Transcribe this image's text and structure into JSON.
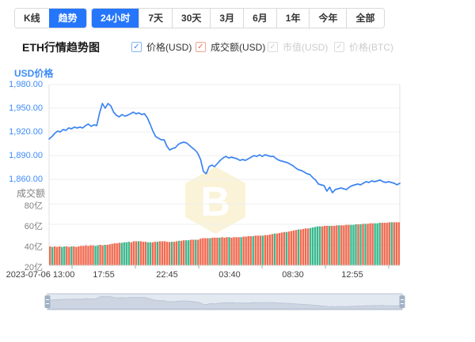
{
  "toolbar": {
    "chart_type_tabs": [
      {
        "label": "K线",
        "active": false
      },
      {
        "label": "趋势",
        "active": true
      }
    ],
    "range_tabs": [
      {
        "label": "24小时",
        "active": true
      },
      {
        "label": "7天",
        "active": false
      },
      {
        "label": "30天",
        "active": false
      },
      {
        "label": "3月",
        "active": false
      },
      {
        "label": "6月",
        "active": false
      },
      {
        "label": "1年",
        "active": false
      },
      {
        "label": "今年",
        "active": false
      },
      {
        "label": "全部",
        "active": false
      }
    ]
  },
  "header": {
    "title": "ETH行情趋势图",
    "legend": [
      {
        "label": "价格(USD)",
        "checked": true,
        "enabled": true,
        "color": "#3d87f5"
      },
      {
        "label": "成交额(USD)",
        "checked": true,
        "enabled": true,
        "color": "#ef6850"
      },
      {
        "label": "市值(USD)",
        "checked": true,
        "enabled": false,
        "color": "#cfcfcf"
      },
      {
        "label": "价格(BTC)",
        "checked": true,
        "enabled": false,
        "color": "#cfcfcf"
      }
    ]
  },
  "icons": {
    "check": "✓"
  },
  "colors": {
    "accent_blue": "#2576fb",
    "price_line": "#3c84f3",
    "price_tick_text": "#3d8bf8",
    "volume_red": "#f06a50",
    "volume_green": "#3bb88e",
    "grid": "#efefef",
    "axis_line": "#e2e2e2",
    "baseline": "#d6d6d6",
    "watermark": "#faf3d8",
    "nav_fill": "#e3e9f1",
    "nav_area": "#ccd5e1",
    "nav_border": "#b7c2d2",
    "nav_handle": "#a2b2c6"
  },
  "chart_data": {
    "type": "line+bar",
    "title": "ETH行情趋势图",
    "x_axis": {
      "ticks": [
        "2023-07-06 13:00",
        "17:55",
        "22:45",
        "03:40",
        "08:30",
        "12:55"
      ]
    },
    "price": {
      "series_name": "价格(USD)",
      "axis_label": "USD价格",
      "ticks": [
        "1,980.00",
        "1,950.00",
        "1,920.00",
        "1,890.00",
        "1,860.00"
      ],
      "tick_values": [
        1980,
        1950,
        1920,
        1890,
        1860
      ],
      "ymin": 1860,
      "ymax": 1980,
      "values": [
        1911,
        1914,
        1918,
        1921,
        1920,
        1923,
        1922,
        1925,
        1924,
        1926,
        1925,
        1926,
        1925,
        1928,
        1930,
        1927,
        1929,
        1928,
        1944,
        1956,
        1950,
        1956,
        1953,
        1945,
        1941,
        1939,
        1942,
        1940,
        1941,
        1943,
        1945,
        1943,
        1944,
        1942,
        1943,
        1938,
        1930,
        1921,
        1914,
        1912,
        1910,
        1910,
        1902,
        1897,
        1899,
        1900,
        1904,
        1906,
        1907,
        1906,
        1903,
        1900,
        1897,
        1893,
        1885,
        1870,
        1867,
        1876,
        1878,
        1876,
        1880,
        1884,
        1887,
        1889,
        1887,
        1888,
        1887,
        1886,
        1884,
        1885,
        1884,
        1886,
        1888,
        1890,
        1889,
        1891,
        1889,
        1891,
        1890,
        1889,
        1889,
        1886,
        1884,
        1883,
        1882,
        1881,
        1879,
        1877,
        1874,
        1872,
        1871,
        1869,
        1867,
        1866,
        1862,
        1859,
        1854,
        1853,
        1852,
        1845,
        1850,
        1843,
        1847,
        1848,
        1849,
        1848,
        1847,
        1850,
        1852,
        1853,
        1854,
        1853,
        1855,
        1857,
        1856,
        1858,
        1857,
        1858,
        1859,
        1857,
        1856,
        1857,
        1856,
        1855,
        1853,
        1855
      ]
    },
    "volume": {
      "series_name": "成交额(USD)",
      "axis_label": "成交额",
      "unit": "亿",
      "ticks": [
        "80亿",
        "60亿",
        "40亿",
        "20亿"
      ],
      "tick_values": [
        80,
        60,
        40,
        20
      ],
      "ymin": 20,
      "ymax": 80,
      "values": [
        38.5,
        38,
        38.5,
        38,
        38.5,
        38,
        38.5,
        38.5,
        38,
        38.5,
        38.5,
        38,
        38.5,
        39,
        39,
        39.5,
        39,
        39.5,
        39.5,
        39,
        39.5,
        40,
        39.5,
        40,
        40,
        40.5,
        41,
        41.5,
        41.5,
        42,
        42,
        42.5,
        42.5,
        43,
        42.5,
        43.5,
        43.5,
        43.5,
        43.5,
        43,
        43,
        42.5,
        42.5,
        42.5,
        43,
        43,
        43.5,
        43.5,
        43.5,
        43,
        42.8,
        43,
        43,
        43.5,
        44,
        44,
        44.5,
        44.5,
        44.5,
        45,
        45,
        45,
        45,
        46,
        46.5,
        46.5,
        46.5,
        46.5,
        47,
        47,
        47,
        47,
        47.5,
        47,
        47.5,
        47.5,
        47,
        47.5,
        47.5,
        47.5,
        47.5,
        48,
        48,
        48.5,
        48.5,
        48.5,
        49,
        49,
        49,
        49,
        49.5,
        49.5,
        50,
        50.5,
        51,
        51,
        51.5,
        52,
        52.5,
        52.5,
        53,
        53.5,
        54,
        54.5,
        55,
        55,
        55.5,
        56,
        56,
        56.5,
        57,
        57.5,
        58,
        58,
        58,
        58.5,
        58.5,
        58.5,
        58.5,
        58.5,
        59,
        59,
        59,
        59,
        59.5,
        59.5,
        59.5,
        59.5,
        60,
        60,
        60,
        60.5,
        60.5,
        60.5,
        61,
        61,
        61,
        61,
        61.5,
        61.5,
        61.5,
        61.5,
        62,
        62,
        62,
        62,
        62
      ],
      "green_indices": [
        1,
        5,
        6,
        9,
        19,
        20,
        23,
        30,
        31,
        32,
        33,
        37,
        41,
        42,
        45,
        51,
        54,
        57,
        58,
        61,
        67,
        71,
        75,
        80,
        85,
        89,
        94,
        99,
        104,
        109,
        110,
        111,
        112,
        113,
        117,
        121,
        126,
        127,
        128,
        130,
        132,
        136,
        137,
        138,
        143
      ]
    }
  }
}
